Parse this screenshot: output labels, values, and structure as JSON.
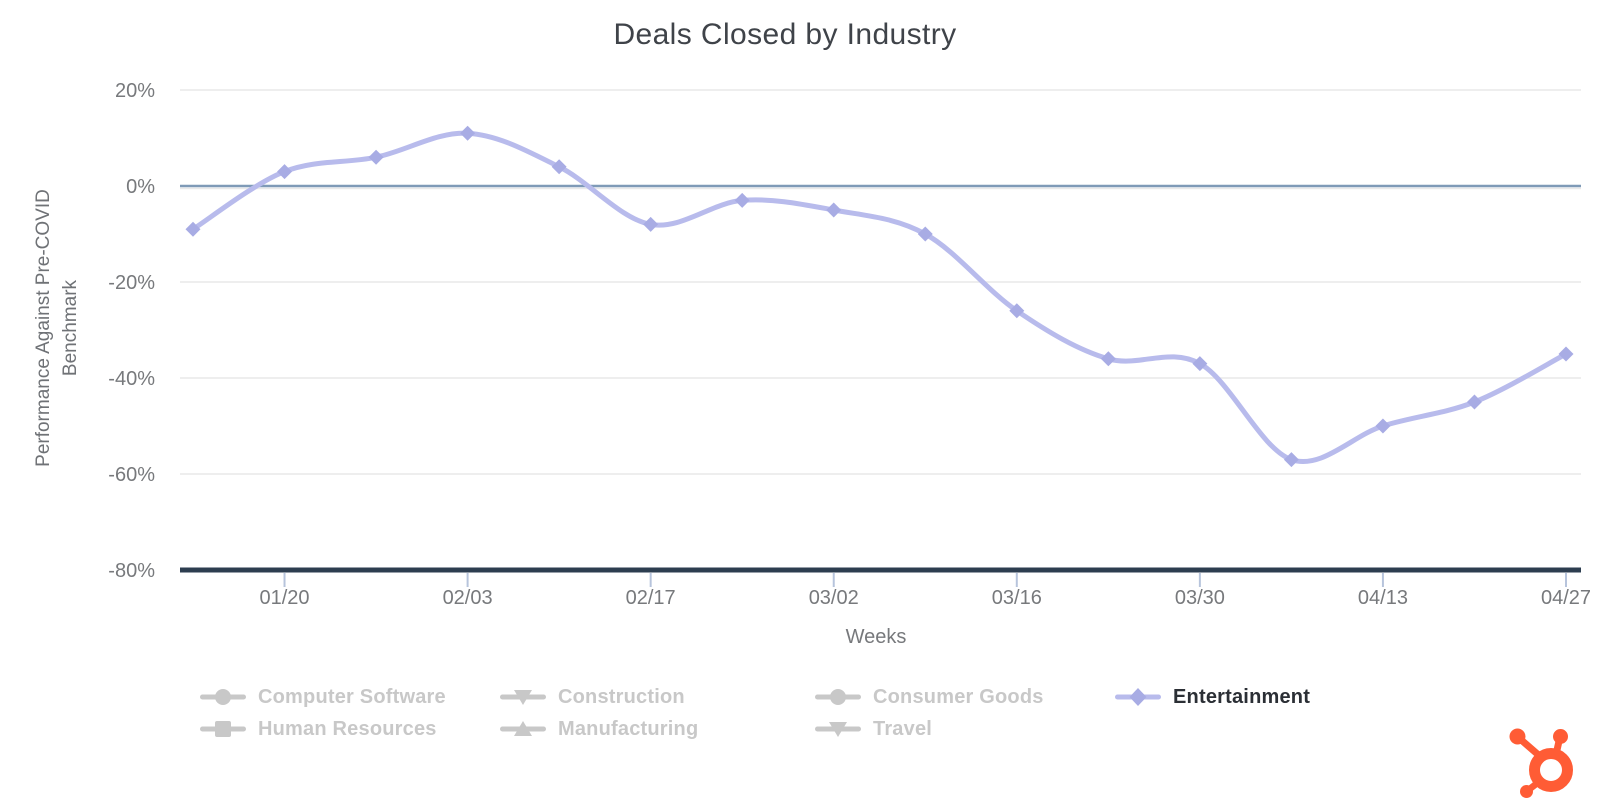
{
  "chart_data": {
    "type": "line",
    "title": "Deals Closed by Industry",
    "xlabel": "Weeks",
    "ylabel": "Performance Against Pre-COVID Benchmark",
    "ylabel_lines": [
      "Performance Against Pre-COVID",
      "Benchmark"
    ],
    "x": [
      "01/13",
      "01/20",
      "01/27",
      "02/03",
      "02/10",
      "02/17",
      "02/24",
      "03/02",
      "03/09",
      "03/16",
      "03/23",
      "03/30",
      "04/06",
      "04/13",
      "04/20",
      "04/27"
    ],
    "x_tick_labels": [
      "01/20",
      "02/03",
      "02/17",
      "03/02",
      "03/16",
      "03/30",
      "04/13",
      "04/27"
    ],
    "y_ticks": [
      20,
      0,
      -20,
      -40,
      -60,
      -80
    ],
    "y_tick_labels": [
      "20%",
      "0%",
      "-20%",
      "-40%",
      "-60%",
      "-80%"
    ],
    "ylim": [
      -80,
      20
    ],
    "grid": true,
    "legend_position": "bottom",
    "series": [
      {
        "name": "Entertainment",
        "marker": "diamond",
        "color": "#b8bbec",
        "marker_color": "#a8ace4",
        "values": [
          -9,
          3,
          6,
          11,
          4,
          -8,
          -3,
          -5,
          -10,
          -26,
          -36,
          -37,
          -57,
          -50,
          -45,
          -35
        ]
      }
    ],
    "grid_color": "#e9e9e9",
    "zero_line_color": "#7f9ab7",
    "axis_line_color": "#2d3e50",
    "tick_color": "#b7c4dc",
    "text_color": "#77797c"
  },
  "legend": {
    "disabled_color": "#c8c8c8",
    "active_text_color": "#2b2f35",
    "active_line_color": "#b8bbec",
    "active_marker_color": "#a8ace4",
    "columns": [
      [
        {
          "label": "Computer Software",
          "marker": "circle",
          "active": false
        },
        {
          "label": "Human Resources",
          "marker": "square",
          "active": false
        }
      ],
      [
        {
          "label": "Construction",
          "marker": "triangle-down",
          "active": false
        },
        {
          "label": "Manufacturing",
          "marker": "triangle-up",
          "active": false
        }
      ],
      [
        {
          "label": "Consumer Goods",
          "marker": "circle",
          "active": false
        },
        {
          "label": "Travel",
          "marker": "triangle-down",
          "active": false
        }
      ],
      [
        {
          "label": "Entertainment",
          "marker": "diamond",
          "active": true
        }
      ]
    ]
  },
  "branding": {
    "logo": "hubspot-sprocket",
    "color": "#ff5c35"
  }
}
